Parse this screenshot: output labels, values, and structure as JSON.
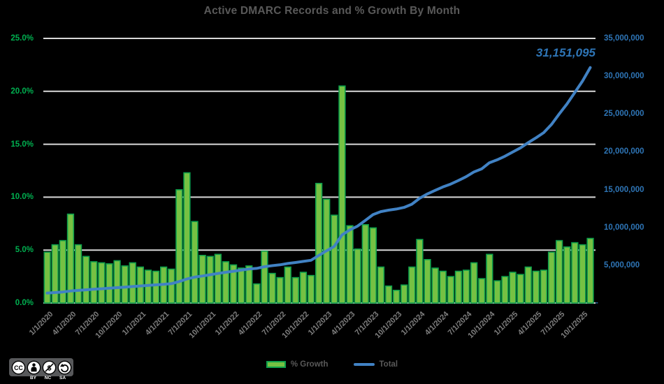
{
  "chart_data": {
    "type": "combo bar+line",
    "title": "Active DMARC Records and % Growth By Month",
    "categories": [
      "1/1/2020",
      "2/1/2020",
      "3/1/2020",
      "4/1/2020",
      "5/1/2020",
      "6/1/2020",
      "7/1/2020",
      "8/1/2020",
      "9/1/2020",
      "10/1/2020",
      "11/1/2020",
      "12/1/2020",
      "1/1/2021",
      "2/1/2021",
      "3/1/2021",
      "4/1/2021",
      "5/1/2021",
      "6/1/2021",
      "7/1/2021",
      "8/1/2021",
      "9/1/2021",
      "10/1/2021",
      "11/1/2021",
      "12/1/2021",
      "1/1/2022",
      "2/1/2022",
      "3/1/2022",
      "4/1/2022",
      "5/1/2022",
      "6/1/2022",
      "7/1/2022",
      "8/1/2022",
      "9/1/2022",
      "10/1/2022",
      "11/1/2022",
      "12/1/2022",
      "1/1/2023",
      "2/1/2023",
      "3/1/2023",
      "4/1/2023",
      "5/1/2023",
      "6/1/2023",
      "7/1/2023",
      "8/1/2023",
      "9/1/2023",
      "10/1/2023",
      "11/1/2023",
      "12/1/2023",
      "1/1/2024",
      "2/1/2024",
      "3/1/2024",
      "4/1/2024",
      "5/1/2024",
      "6/1/2024",
      "7/1/2024",
      "8/1/2024",
      "9/1/2024",
      "10/1/2024",
      "11/1/2024",
      "12/1/2024",
      "1/1/2025",
      "2/1/2025",
      "3/1/2025",
      "4/1/2025",
      "5/1/2025",
      "6/1/2025",
      "7/1/2025",
      "8/1/2025",
      "9/1/2025",
      "10/1/2025",
      "11/1/2025"
    ],
    "series": [
      {
        "name": "% Growth",
        "type": "bar",
        "axis": "left",
        "unit": "percent",
        "values": [
          4.8,
          5.5,
          5.9,
          8.4,
          5.5,
          4.4,
          3.9,
          3.8,
          3.7,
          4.0,
          3.5,
          3.8,
          3.4,
          3.1,
          3.0,
          3.4,
          3.2,
          10.7,
          12.3,
          7.7,
          4.5,
          4.4,
          4.6,
          3.9,
          3.6,
          3.3,
          3.5,
          1.8,
          4.9,
          2.8,
          2.4,
          3.4,
          2.4,
          2.9,
          2.6,
          11.3,
          9.8,
          8.3,
          20.5,
          7.3,
          5.1,
          7.4,
          7.1,
          3.4,
          1.6,
          1.2,
          1.7,
          3.4,
          6.0,
          4.1,
          3.3,
          3.0,
          2.5,
          3.0,
          3.1,
          3.8,
          2.3,
          4.6,
          2.1,
          2.5,
          2.9,
          2.7,
          3.4,
          3.0,
          3.1,
          4.8,
          5.9,
          5.3,
          5.7,
          5.5,
          6.1
        ]
      },
      {
        "name": "Total",
        "type": "line",
        "axis": "right",
        "end_value": 31151095,
        "note": "cumulative total; intermediate points derived by back-compounding % growth from end_value"
      }
    ],
    "left_axis": {
      "ticks": [
        "0.0%",
        "5.0%",
        "10.0%",
        "15.0%",
        "20.0%",
        "25.0%"
      ],
      "min": 0,
      "max": 25
    },
    "right_axis": {
      "ticks": [
        "-",
        "5,000,000",
        "10,000,000",
        "15,000,000",
        "20,000,000",
        "25,000,000",
        "30,000,000",
        "35,000,000"
      ],
      "min": 0,
      "max": 35000000
    },
    "x_axis": {
      "visible_tick_every": 3,
      "visible_labels": [
        "1/1/2020",
        "4/1/2020",
        "7/1/2020",
        "10/1/2020",
        "1/1/2021",
        "4/1/2021",
        "7/1/2021",
        "10/1/2021",
        "1/1/2022",
        "4/1/2022",
        "7/1/2022",
        "10/1/2022",
        "1/1/2023",
        "4/1/2023",
        "7/1/2023",
        "10/1/2023",
        "1/1/2024",
        "4/1/2024",
        "7/1/2024",
        "10/1/2024",
        "1/1/2025",
        "4/1/2025",
        "7/1/2025",
        "10/1/2025"
      ]
    },
    "grid": "horizontal",
    "legend_position": "bottom",
    "annotation": {
      "text": "31,151,095"
    }
  },
  "legend": {
    "items": [
      {
        "label": "% Growth"
      },
      {
        "label": "Total"
      }
    ]
  },
  "cc_badge": {
    "cc_text": "CC",
    "labels": [
      "BY",
      "NC",
      "SA"
    ]
  },
  "colors": {
    "background": "#000000",
    "bar_fill": "#76C143",
    "bar_border": "#0EA04C",
    "line": "#4182C4",
    "grid": "#D9D9D9",
    "title_text": "#595959",
    "left_axis_text": "#00B050",
    "right_axis_text": "#2E75B6",
    "x_axis_text": "#7F7F7F",
    "legend_text": "#595959",
    "annotation_text": "#2E75B6",
    "badge_bg": "#58595B",
    "badge_fg": "#FFFFFF"
  }
}
